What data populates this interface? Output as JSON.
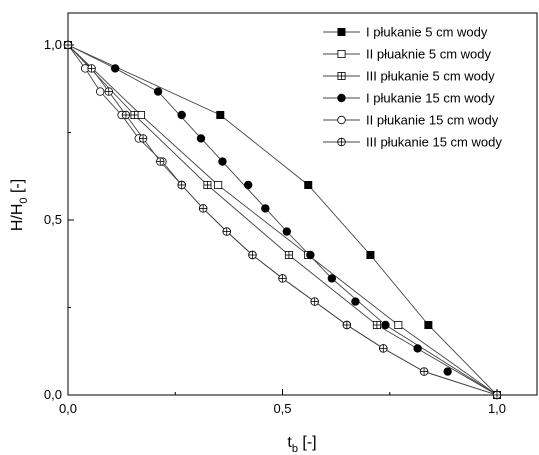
{
  "chart_data": {
    "type": "line",
    "title": "",
    "xlabel": "t",
    "xlabel_sub": "b",
    "xlabel_suffix": " [-]",
    "ylabel": "H/H",
    "ylabel_sub": "0",
    "ylabel_suffix": " [-]",
    "xlim": [
      0,
      1.1
    ],
    "ylim": [
      0,
      1.05
    ],
    "xticks": [
      0,
      0.5,
      1.0
    ],
    "yticks": [
      0,
      0.5,
      1.0
    ],
    "xtick_labels": [
      "0,0",
      "0,5",
      "1,0"
    ],
    "ytick_labels": [
      "0,0",
      "0,5",
      "1,0"
    ],
    "grid": false,
    "legend_position": "top-right",
    "series": [
      {
        "name": "I płukanie 5 cm wody",
        "marker": "square-filled",
        "x": [
          0,
          0.355,
          0.56,
          0.705,
          0.84,
          1.0
        ],
        "y": [
          1.0,
          0.8,
          0.6,
          0.4,
          0.2,
          0.0
        ]
      },
      {
        "name": "II płuaknie 5 cm wody",
        "marker": "square-open",
        "x": [
          0,
          0.17,
          0.35,
          0.56,
          0.77,
          1.0
        ],
        "y": [
          1.0,
          0.8,
          0.6,
          0.4,
          0.2,
          0.0
        ]
      },
      {
        "name": "III płukanie 5 cm wody",
        "marker": "square-cross",
        "x": [
          0,
          0.155,
          0.325,
          0.515,
          0.72,
          1.0
        ],
        "y": [
          1.0,
          0.8,
          0.6,
          0.4,
          0.2,
          0.0
        ]
      },
      {
        "name": "I płukanie 15 cm wody",
        "marker": "circle-filled",
        "x": [
          0,
          0.11,
          0.21,
          0.265,
          0.31,
          0.36,
          0.42,
          0.46,
          0.51,
          0.565,
          0.615,
          0.67,
          0.74,
          0.815,
          0.885,
          1.0
        ],
        "y": [
          1.0,
          0.933,
          0.867,
          0.8,
          0.733,
          0.667,
          0.6,
          0.533,
          0.467,
          0.4,
          0.333,
          0.267,
          0.2,
          0.133,
          0.067,
          0.0
        ],
        "connect_indices": [
          0,
          1,
          2,
          8,
          10,
          12,
          15
        ]
      },
      {
        "name": "II płukanie 15 cm wody",
        "marker": "circle-open",
        "x": [
          0,
          0.04,
          0.075,
          0.125,
          0.165,
          0.22,
          0.265,
          0.315,
          0.37,
          0.43,
          0.5,
          0.575,
          0.65,
          0.735,
          0.83,
          1.0
        ],
        "y": [
          1.0,
          0.933,
          0.867,
          0.8,
          0.733,
          0.667,
          0.6,
          0.533,
          0.467,
          0.4,
          0.333,
          0.267,
          0.2,
          0.133,
          0.067,
          0.0
        ]
      },
      {
        "name": "III płukanie 15 cm wody",
        "marker": "circle-cross",
        "x": [
          0,
          0.055,
          0.095,
          0.135,
          0.175,
          0.215,
          0.265,
          0.315,
          0.37,
          0.43,
          0.5,
          0.575,
          0.65,
          0.735,
          0.83,
          1.0
        ],
        "y": [
          1.0,
          0.933,
          0.867,
          0.8,
          0.733,
          0.667,
          0.6,
          0.533,
          0.467,
          0.4,
          0.333,
          0.267,
          0.2,
          0.133,
          0.067,
          0.0
        ]
      }
    ]
  }
}
